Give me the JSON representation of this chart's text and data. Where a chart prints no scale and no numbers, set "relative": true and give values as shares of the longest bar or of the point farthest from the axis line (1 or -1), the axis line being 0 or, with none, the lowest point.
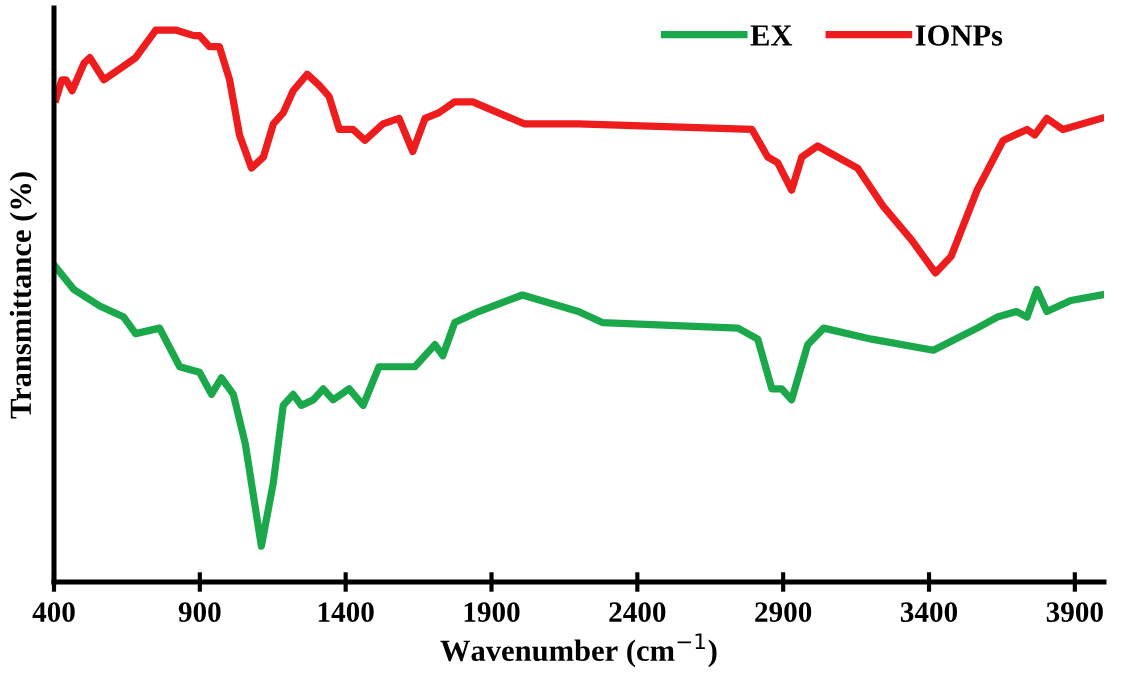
{
  "chart_data": {
    "type": "line",
    "xlabel": "Wavenumber (cm$^{−1}$)",
    "ylabel": "Transmittance (%)",
    "relative": true,
    "tick_labels": "x",
    "grid": false,
    "legend": "top right",
    "marker": "none",
    "line_style": "solid",
    "xlim": [
      400,
      4000
    ],
    "xticks": [
      400,
      900,
      1400,
      1900,
      2400,
      2900,
      3400,
      3900
    ],
    "series": [
      {
        "name": "EX",
        "color": "#1aa84a",
        "x": [
          407,
          468,
          557,
          639,
          680,
          762,
          831,
          899,
          940,
          974,
          1015,
          1056,
          1111,
          1152,
          1186,
          1220,
          1248,
          1289,
          1323,
          1357,
          1412,
          1460,
          1514,
          1583,
          1637,
          1706,
          1733,
          1774,
          1856,
          2006,
          2198,
          2280,
          2745,
          2813,
          2861,
          2895,
          2929,
          2984,
          3039,
          3203,
          3415,
          3565,
          3634,
          3700,
          3736,
          3770,
          3804,
          3886,
          3990
        ],
        "values": [
          0.57,
          0.53,
          0.5,
          0.48,
          0.45,
          0.46,
          0.39,
          0.38,
          0.34,
          0.37,
          0.34,
          0.25,
          0.065,
          0.18,
          0.32,
          0.34,
          0.32,
          0.33,
          0.35,
          0.33,
          0.35,
          0.32,
          0.39,
          0.39,
          0.39,
          0.43,
          0.41,
          0.47,
          0.49,
          0.52,
          0.49,
          0.47,
          0.46,
          0.44,
          0.35,
          0.35,
          0.33,
          0.43,
          0.46,
          0.44,
          0.42,
          0.46,
          0.48,
          0.49,
          0.48,
          0.53,
          0.49,
          0.51,
          0.52
        ]
      },
      {
        "name": "IONPs",
        "color": "#ee1c1c",
        "x": [
          407,
          427,
          441,
          462,
          503,
          523,
          571,
          626,
          680,
          749,
          817,
          879,
          899,
          933,
          967,
          1002,
          1036,
          1077,
          1118,
          1152,
          1186,
          1220,
          1268,
          1309,
          1343,
          1378,
          1425,
          1466,
          1528,
          1583,
          1630,
          1672,
          1719,
          1774,
          1836,
          1924,
          2013,
          2198,
          2793,
          2847,
          2881,
          2929,
          2964,
          3018,
          3155,
          3244,
          3340,
          3422,
          3476,
          3565,
          3654,
          3736,
          3763,
          3804,
          3859,
          3990
        ],
        "values": [
          0.875,
          0.91,
          0.91,
          0.89,
          0.94,
          0.95,
          0.91,
          0.93,
          0.95,
          1.0,
          1.0,
          0.99,
          0.99,
          0.97,
          0.97,
          0.91,
          0.81,
          0.75,
          0.77,
          0.83,
          0.85,
          0.89,
          0.92,
          0.9,
          0.88,
          0.82,
          0.82,
          0.8,
          0.83,
          0.84,
          0.78,
          0.84,
          0.85,
          0.87,
          0.87,
          0.85,
          0.83,
          0.83,
          0.82,
          0.77,
          0.76,
          0.71,
          0.77,
          0.79,
          0.75,
          0.68,
          0.62,
          0.56,
          0.59,
          0.71,
          0.8,
          0.82,
          0.81,
          0.84,
          0.82,
          0.84
        ]
      }
    ]
  }
}
